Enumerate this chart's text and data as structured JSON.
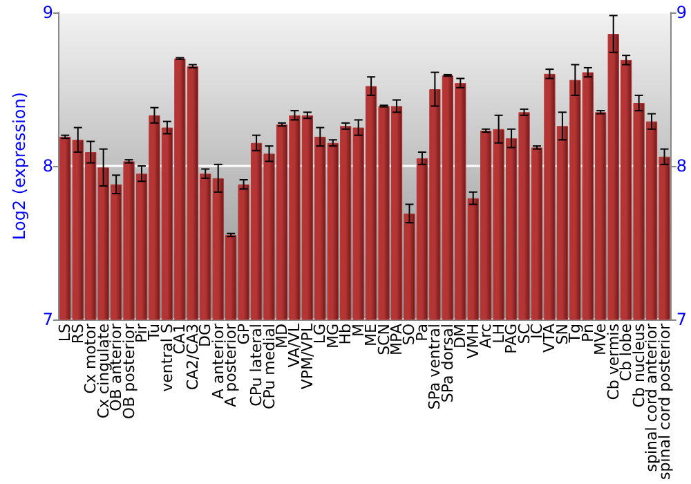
{
  "chart_data": {
    "type": "bar",
    "ylabel": "Log2 (expression)",
    "categories": [
      "LS",
      "RS",
      "Cx motor",
      "Cx cingulate",
      "OB anterior",
      "OB posterior",
      "Pir",
      "Tu",
      "ventral S",
      "CA1",
      "CA2/CA3",
      "DG",
      "A anterior",
      "A posterior",
      "GP",
      "CPu lateral",
      "CPu medial",
      "MD",
      "VA/VL",
      "VPM/VPL",
      "LG",
      "MG",
      "Hb",
      "M",
      "ME",
      "SCN",
      "MPA",
      "SO",
      "Pa",
      "SPa ventral",
      "SPa dorsal",
      "DM",
      "VMH",
      "Arc",
      "LH",
      "PAG",
      "SC",
      "IC",
      "VTA",
      "SN",
      "Tg",
      "Pn",
      "MVe",
      "Cb vermis",
      "Cb lobe",
      "Cb nucleus",
      "spinal cord anterior",
      "spinal cord posterior"
    ],
    "values": [
      8.19,
      8.17,
      8.09,
      7.99,
      7.88,
      8.03,
      7.95,
      8.33,
      8.25,
      8.7,
      8.65,
      7.95,
      7.92,
      7.55,
      7.88,
      8.15,
      8.08,
      8.27,
      8.33,
      8.33,
      8.19,
      8.15,
      8.26,
      8.25,
      8.52,
      8.39,
      8.39,
      7.69,
      8.05,
      8.5,
      8.59,
      8.54,
      7.79,
      8.23,
      8.24,
      8.18,
      8.35,
      8.12,
      8.6,
      8.26,
      8.56,
      8.61,
      8.35,
      8.86,
      8.69,
      8.41,
      8.29,
      8.06
    ],
    "errors": [
      0.01,
      0.08,
      0.07,
      0.12,
      0.06,
      0.01,
      0.05,
      0.05,
      0.04,
      0.005,
      0.01,
      0.03,
      0.09,
      0.01,
      0.03,
      0.05,
      0.05,
      0.01,
      0.03,
      0.02,
      0.06,
      0.02,
      0.02,
      0.05,
      0.06,
      0.005,
      0.04,
      0.06,
      0.04,
      0.11,
      0.005,
      0.03,
      0.04,
      0.01,
      0.09,
      0.06,
      0.02,
      0.01,
      0.03,
      0.09,
      0.1,
      0.03,
      0.01,
      0.12,
      0.03,
      0.05,
      0.05,
      0.05
    ],
    "color": "#b53434",
    "ylim": [
      7,
      9
    ],
    "yticks": [
      7,
      8,
      9
    ],
    "y2lim": [
      7,
      9
    ],
    "y2ticks": [
      7,
      8,
      9
    ],
    "grid": "y"
  }
}
